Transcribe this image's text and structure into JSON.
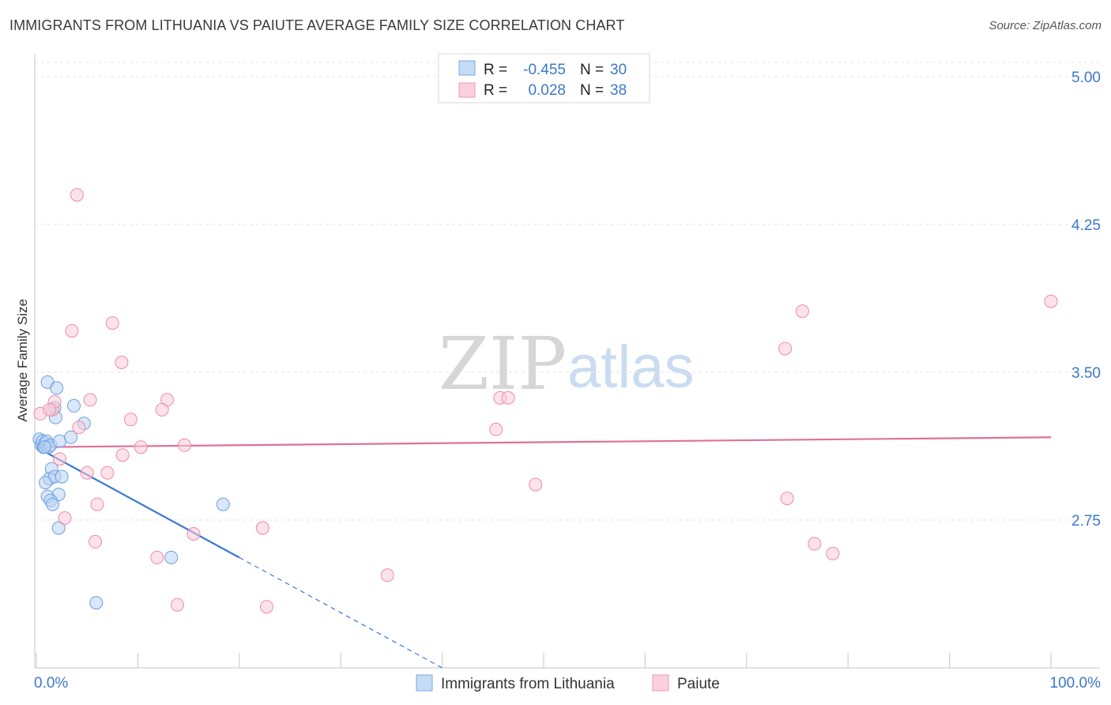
{
  "header": {
    "title": "IMMIGRANTS FROM LITHUANIA VS PAIUTE AVERAGE FAMILY SIZE CORRELATION CHART",
    "source": "Source: ZipAtlas.com"
  },
  "watermark": {
    "zip": "ZIP",
    "atlas": "atlas"
  },
  "stats": {
    "r_label": "R =",
    "n_label": "N =",
    "rows": [
      {
        "r": "-0.455",
        "n": "30",
        "color": "#a9c8ef"
      },
      {
        "r": "0.028",
        "n": "38",
        "color": "#f6bfcf"
      }
    ]
  },
  "chart_data": {
    "type": "scatter",
    "title": "IMMIGRANTS FROM LITHUANIA VS PAIUTE AVERAGE FAMILY SIZE CORRELATION CHART",
    "xlabel": "",
    "ylabel": "Average Family Size",
    "xlim": [
      0,
      100
    ],
    "ylim": [
      2.0,
      5.1
    ],
    "x_tick_labels": [
      "0.0%",
      "100.0%"
    ],
    "y_ticks": [
      2.75,
      3.5,
      4.25,
      5.0
    ],
    "y_tick_labels": [
      "2.75",
      "3.50",
      "4.25",
      "5.00"
    ],
    "grid": "horizontal-dashed",
    "legend_position": "bottom-center",
    "series": [
      {
        "name": "Immigrants from Lithuania",
        "color": "#6aa0e0",
        "fill": "#b9d3f2",
        "points": [
          [
            0.3,
            3.16
          ],
          [
            0.5,
            3.13
          ],
          [
            0.6,
            3.15
          ],
          [
            0.7,
            3.12
          ],
          [
            0.9,
            3.14
          ],
          [
            1.0,
            3.15
          ],
          [
            1.2,
            3.12
          ],
          [
            1.4,
            3.13
          ],
          [
            1.1,
            3.45
          ],
          [
            2.0,
            3.42
          ],
          [
            1.8,
            3.32
          ],
          [
            3.7,
            3.33
          ],
          [
            1.9,
            3.27
          ],
          [
            2.3,
            3.15
          ],
          [
            4.7,
            3.24
          ],
          [
            3.4,
            3.17
          ],
          [
            1.5,
            3.01
          ],
          [
            1.3,
            2.96
          ],
          [
            1.8,
            2.97
          ],
          [
            2.5,
            2.97
          ],
          [
            0.9,
            2.94
          ],
          [
            1.1,
            2.87
          ],
          [
            2.2,
            2.88
          ],
          [
            1.4,
            2.85
          ],
          [
            1.6,
            2.83
          ],
          [
            2.2,
            2.71
          ],
          [
            18.4,
            2.83
          ],
          [
            13.3,
            2.56
          ],
          [
            5.9,
            2.33
          ],
          [
            0.8,
            3.12
          ]
        ],
        "trend": {
          "x": [
            0.0,
            20.0
          ],
          "y": [
            3.12,
            2.56
          ],
          "dashed_to": [
            40.0,
            2.0
          ]
        }
      },
      {
        "name": "Paiute",
        "color": "#ee8aa8",
        "fill": "#f9ccd9",
        "points": [
          [
            4.0,
            4.4
          ],
          [
            3.5,
            3.71
          ],
          [
            7.5,
            3.75
          ],
          [
            8.4,
            3.55
          ],
          [
            1.6,
            3.31
          ],
          [
            1.8,
            3.35
          ],
          [
            0.4,
            3.29
          ],
          [
            1.3,
            3.31
          ],
          [
            5.3,
            3.36
          ],
          [
            9.3,
            3.26
          ],
          [
            12.9,
            3.36
          ],
          [
            12.4,
            3.31
          ],
          [
            4.2,
            3.22
          ],
          [
            10.3,
            3.12
          ],
          [
            14.6,
            3.13
          ],
          [
            8.5,
            3.08
          ],
          [
            2.3,
            3.06
          ],
          [
            5.0,
            2.99
          ],
          [
            7.0,
            2.99
          ],
          [
            6.0,
            2.83
          ],
          [
            2.8,
            2.76
          ],
          [
            22.3,
            2.71
          ],
          [
            15.5,
            2.68
          ],
          [
            5.8,
            2.64
          ],
          [
            11.9,
            2.56
          ],
          [
            13.9,
            2.32
          ],
          [
            22.7,
            2.31
          ],
          [
            34.6,
            2.47
          ],
          [
            45.7,
            3.37
          ],
          [
            46.5,
            3.37
          ],
          [
            45.3,
            3.21
          ],
          [
            49.2,
            2.93
          ],
          [
            75.5,
            3.81
          ],
          [
            73.8,
            3.62
          ],
          [
            74.0,
            2.86
          ],
          [
            76.7,
            2.63
          ],
          [
            78.5,
            2.58
          ],
          [
            100.0,
            3.86
          ]
        ],
        "trend": {
          "x": [
            0.0,
            100.0
          ],
          "y": [
            3.12,
            3.17
          ]
        }
      }
    ]
  }
}
